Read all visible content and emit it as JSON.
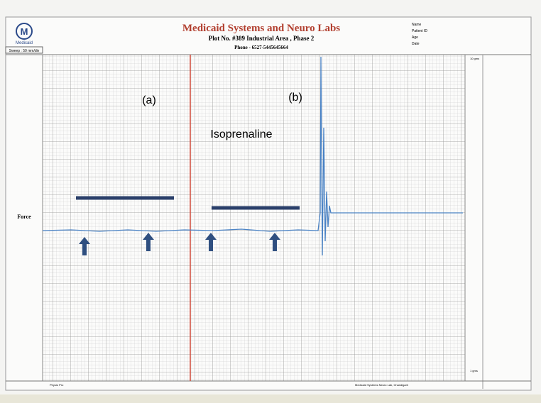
{
  "header": {
    "logo_text": "Medicaid",
    "sweep": "Sweep : 50 mm/div",
    "title": "Medicaid Systems and Neuro Labs",
    "address": "Plot No. #389 Industrial Area , Phase 2",
    "phone": "Phone - 6527-5445645664",
    "info": [
      "Name",
      "Patient ID",
      "Age",
      "Date"
    ]
  },
  "recording": {
    "channel": "Force",
    "label_a": "(a)",
    "label_b": "(b)",
    "drug": "Isoprenaline",
    "scale_top": "10 gms",
    "scale_bottom": "1 gms"
  },
  "footer": {
    "left": "Physio Pro",
    "right": "Medicaid Systems Neuro Lab, Chandigarh"
  }
}
